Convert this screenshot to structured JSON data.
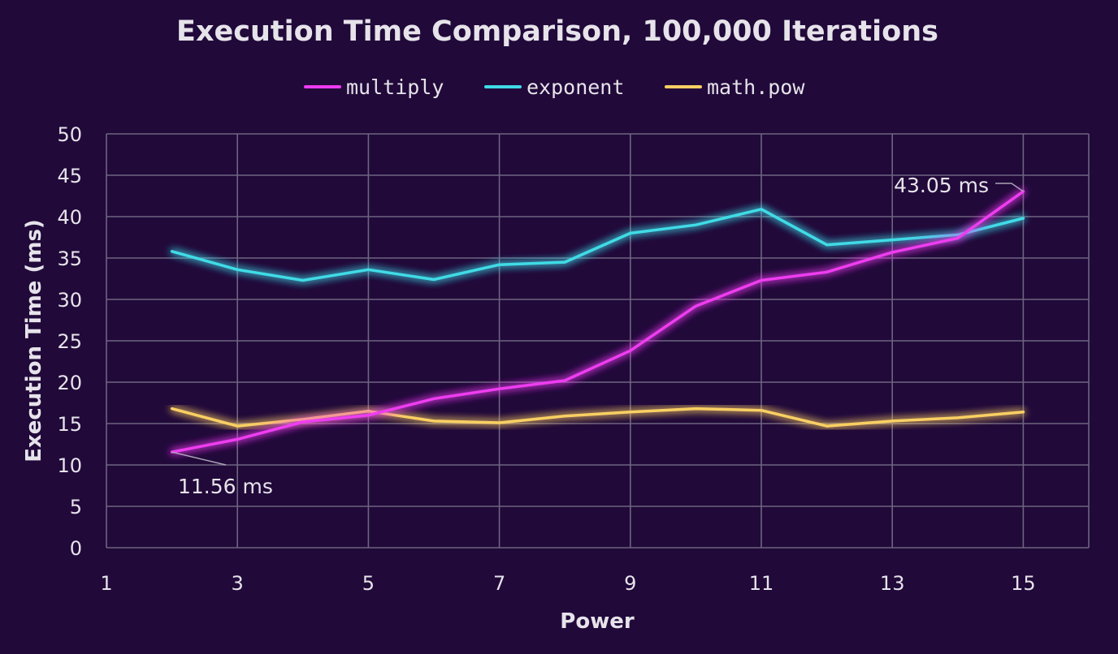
{
  "chart_data": {
    "type": "line",
    "title": "Execution Time Comparison, 100,000 Iterations",
    "xlabel": "Power",
    "ylabel": "Execution Time (ms)",
    "xlim": [
      1,
      16
    ],
    "ylim": [
      0,
      50
    ],
    "x_ticks": [
      1,
      3,
      5,
      7,
      9,
      11,
      13,
      15
    ],
    "y_ticks": [
      0,
      5,
      10,
      15,
      20,
      25,
      30,
      35,
      40,
      45,
      50
    ],
    "grid": true,
    "legend_position": "top",
    "x": [
      2,
      3,
      4,
      5,
      6,
      7,
      8,
      9,
      10,
      11,
      12,
      13,
      14,
      15
    ],
    "series": [
      {
        "name": "multiply",
        "color": "#ee3cf0",
        "values": [
          11.56,
          13.1,
          15.2,
          16.0,
          18.0,
          19.2,
          20.2,
          23.8,
          29.2,
          32.3,
          33.3,
          35.7,
          37.4,
          43.05
        ]
      },
      {
        "name": "exponent",
        "color": "#3fdbe6",
        "values": [
          35.8,
          33.6,
          32.3,
          33.6,
          32.4,
          34.2,
          34.5,
          38.0,
          39.0,
          40.9,
          36.6,
          37.2,
          37.8,
          39.8
        ]
      },
      {
        "name": "math.pow",
        "color": "#f9cf63",
        "values": [
          16.8,
          14.7,
          15.5,
          16.5,
          15.3,
          15.1,
          15.9,
          16.4,
          16.8,
          16.6,
          14.7,
          15.3,
          15.7,
          16.4
        ]
      }
    ],
    "annotations": [
      {
        "text": "11.56 ms",
        "series": "multiply",
        "x": 2,
        "y": 11.56
      },
      {
        "text": "43.05 ms",
        "series": "multiply",
        "x": 15,
        "y": 43.05
      }
    ]
  }
}
